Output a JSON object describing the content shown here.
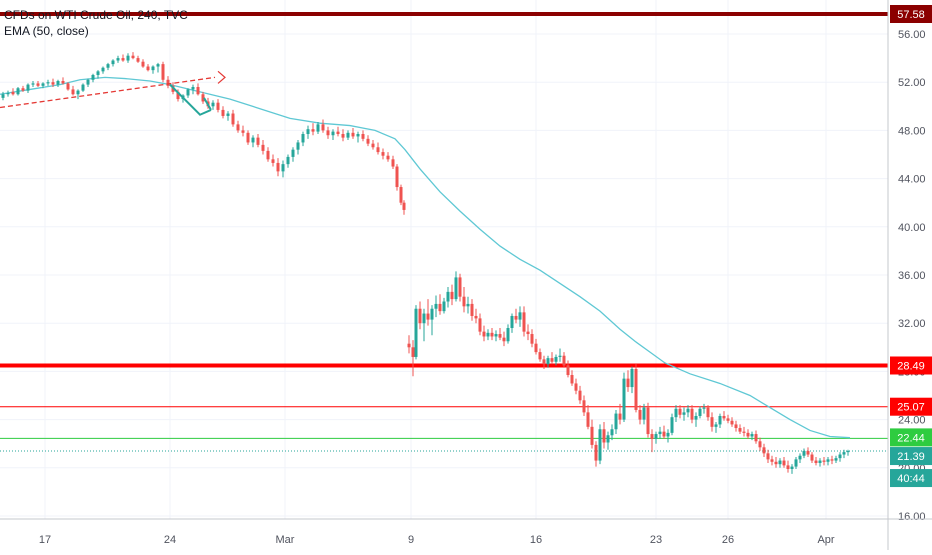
{
  "chart_data": {
    "type": "candlestick",
    "title": "CFDs on WTI Crude Oil, 240, TVC",
    "indicator": "EMA (50, close)",
    "ylim": [
      15.5,
      57.5
    ],
    "y_ticks": [
      "56.00",
      "52.00",
      "48.00",
      "44.00",
      "40.00",
      "36.00",
      "32.00",
      "28.00",
      "24.00",
      "20.00",
      "16.00"
    ],
    "x_ticks": [
      "17",
      "24",
      "Mar",
      "9",
      "16",
      "23",
      "26",
      "Apr"
    ],
    "grid": true,
    "colors": {
      "up": "#26a69a",
      "down": "#ef5350",
      "ema": "#5fc8d4",
      "resistance_dark": "#8b0000",
      "resistance": "#ff0000",
      "support": "#2ecc40",
      "current": "#26a69a"
    },
    "horizontal_lines": [
      {
        "value": 57.58,
        "label": "57.58",
        "color": "#8b0000"
      },
      {
        "value": 28.49,
        "label": "28.49",
        "color": "#ff0000"
      },
      {
        "value": 25.07,
        "label": "25.07",
        "color": "#ff0000"
      },
      {
        "value": 22.44,
        "label": "22.44",
        "color": "#2ecc40"
      },
      {
        "value": 21.39,
        "label": "21.39",
        "color": "#26a69a",
        "dotted": true
      }
    ],
    "countdown": "40:44",
    "ema_path": [
      [
        0,
        51.0
      ],
      [
        30,
        51.4
      ],
      [
        60,
        51.8
      ],
      [
        80,
        52.2
      ],
      [
        105,
        52.4
      ],
      [
        125,
        52.3
      ],
      [
        150,
        52.1
      ],
      [
        170,
        51.8
      ],
      [
        200,
        51.2
      ],
      [
        230,
        50.6
      ],
      [
        260,
        49.8
      ],
      [
        290,
        49.0
      ],
      [
        320,
        48.6
      ],
      [
        350,
        48.4
      ],
      [
        375,
        48.0
      ],
      [
        395,
        47.3
      ],
      [
        405,
        46.4
      ],
      [
        420,
        44.8
      ],
      [
        440,
        42.9
      ],
      [
        460,
        41.3
      ],
      [
        480,
        39.8
      ],
      [
        500,
        38.4
      ],
      [
        520,
        37.3
      ],
      [
        540,
        36.4
      ],
      [
        560,
        35.3
      ],
      [
        580,
        34.2
      ],
      [
        600,
        33.0
      ],
      [
        620,
        31.5
      ],
      [
        635,
        30.5
      ],
      [
        650,
        29.6
      ],
      [
        665,
        28.7
      ],
      [
        690,
        27.8
      ],
      [
        720,
        27.0
      ],
      [
        750,
        26.0
      ],
      [
        770,
        25.0
      ],
      [
        790,
        24.0
      ],
      [
        810,
        23.1
      ],
      [
        830,
        22.6
      ],
      [
        850,
        22.5
      ]
    ],
    "series_candles": [
      [
        3,
        50.7,
        51.2,
        50.5,
        51.0
      ],
      [
        8,
        51.0,
        51.3,
        50.8,
        51.1
      ],
      [
        13,
        51.2,
        51.5,
        50.9,
        51.0
      ],
      [
        18,
        51.0,
        51.6,
        50.9,
        51.5
      ],
      [
        23,
        51.5,
        51.7,
        51.2,
        51.3
      ],
      [
        28,
        51.3,
        51.9,
        51.1,
        51.8
      ],
      [
        33,
        51.8,
        52.1,
        51.6,
        51.9
      ],
      [
        38,
        51.9,
        52.1,
        51.6,
        51.7
      ],
      [
        43,
        51.7,
        52.0,
        51.5,
        51.9
      ],
      [
        48,
        51.9,
        52.2,
        51.7,
        52.0
      ],
      [
        53,
        52.0,
        52.3,
        51.6,
        51.8
      ],
      [
        58,
        51.8,
        52.2,
        51.6,
        52.1
      ],
      [
        63,
        52.1,
        52.4,
        51.8,
        51.9
      ],
      [
        68,
        51.9,
        52.0,
        51.3,
        51.4
      ],
      [
        73,
        51.4,
        51.7,
        50.9,
        51.0
      ],
      [
        78,
        51.0,
        51.4,
        50.6,
        51.3
      ],
      [
        83,
        51.3,
        51.9,
        51.2,
        51.8
      ],
      [
        88,
        51.8,
        52.3,
        51.6,
        52.2
      ],
      [
        93,
        52.2,
        52.7,
        52.0,
        52.6
      ],
      [
        98,
        52.6,
        53.0,
        52.3,
        52.9
      ],
      [
        103,
        52.9,
        53.3,
        52.7,
        53.2
      ],
      [
        108,
        53.2,
        53.6,
        53.0,
        53.5
      ],
      [
        113,
        53.5,
        53.9,
        53.3,
        53.8
      ],
      [
        118,
        53.8,
        54.2,
        53.6,
        54.0
      ],
      [
        123,
        54.0,
        54.3,
        53.7,
        53.8
      ],
      [
        128,
        53.8,
        54.4,
        53.6,
        54.2
      ],
      [
        133,
        54.2,
        54.5,
        53.9,
        54.0
      ],
      [
        138,
        54.0,
        54.2,
        53.6,
        53.7
      ],
      [
        143,
        53.7,
        53.9,
        53.2,
        53.3
      ],
      [
        148,
        53.3,
        53.5,
        52.9,
        53.0
      ],
      [
        153,
        53.0,
        53.4,
        52.7,
        53.3
      ],
      [
        158,
        53.3,
        53.6,
        52.8,
        53.5
      ],
      [
        163,
        53.5,
        53.7,
        52.0,
        52.2
      ],
      [
        168,
        52.2,
        52.5,
        51.5,
        51.7
      ],
      [
        173,
        51.7,
        52.0,
        51.0,
        51.2
      ],
      [
        178,
        51.2,
        51.4,
        50.4,
        50.6
      ],
      [
        183,
        50.6,
        51.0,
        50.3,
        50.9
      ],
      [
        188,
        50.9,
        51.5,
        50.7,
        51.4
      ],
      [
        193,
        51.4,
        51.8,
        51.0,
        51.6
      ],
      [
        198,
        51.6,
        51.9,
        50.9,
        51.0
      ],
      [
        203,
        51.0,
        51.2,
        50.2,
        50.4
      ],
      [
        208,
        50.4,
        50.7,
        49.8,
        50.0
      ],
      [
        213,
        50.0,
        50.5,
        49.7,
        50.3
      ],
      [
        218,
        50.3,
        50.6,
        49.5,
        49.7
      ],
      [
        223,
        49.7,
        50.0,
        49.0,
        49.2
      ],
      [
        228,
        49.2,
        49.6,
        48.8,
        49.4
      ],
      [
        233,
        49.4,
        49.7,
        48.3,
        48.5
      ],
      [
        238,
        48.5,
        48.8,
        47.8,
        48.0
      ],
      [
        243,
        48.0,
        48.4,
        47.5,
        47.8
      ],
      [
        248,
        47.8,
        48.0,
        46.8,
        47.0
      ],
      [
        253,
        47.0,
        47.6,
        46.6,
        47.4
      ],
      [
        258,
        47.4,
        47.7,
        46.6,
        46.8
      ],
      [
        263,
        46.8,
        47.2,
        46.0,
        46.3
      ],
      [
        268,
        46.3,
        46.6,
        45.4,
        45.6
      ],
      [
        273,
        45.6,
        46.0,
        45.0,
        45.3
      ],
      [
        278,
        45.3,
        45.7,
        44.2,
        44.6
      ],
      [
        283,
        44.6,
        45.5,
        44.1,
        45.2
      ],
      [
        288,
        45.2,
        46.0,
        44.9,
        45.8
      ],
      [
        293,
        45.8,
        46.6,
        45.4,
        46.4
      ],
      [
        298,
        46.4,
        47.2,
        46.0,
        47.0
      ],
      [
        303,
        47.0,
        47.9,
        46.7,
        47.7
      ],
      [
        308,
        47.7,
        48.4,
        47.3,
        48.1
      ],
      [
        313,
        48.1,
        48.6,
        47.6,
        47.9
      ],
      [
        318,
        47.9,
        48.7,
        47.7,
        48.5
      ],
      [
        323,
        48.5,
        48.9,
        47.8,
        48.0
      ],
      [
        328,
        48.0,
        48.3,
        47.3,
        47.6
      ],
      [
        333,
        47.6,
        48.1,
        47.2,
        47.9
      ],
      [
        338,
        47.9,
        48.3,
        47.5,
        47.7
      ],
      [
        343,
        47.7,
        48.1,
        47.1,
        47.4
      ],
      [
        348,
        47.4,
        48.0,
        47.2,
        47.8
      ],
      [
        353,
        47.8,
        48.2,
        47.3,
        47.5
      ],
      [
        358,
        47.5,
        47.9,
        47.0,
        47.7
      ],
      [
        363,
        47.7,
        48.0,
        47.1,
        47.3
      ],
      [
        368,
        47.3,
        47.6,
        46.7,
        46.9
      ],
      [
        373,
        46.9,
        47.2,
        46.4,
        46.6
      ],
      [
        378,
        46.6,
        47.0,
        46.0,
        46.2
      ],
      [
        383,
        46.2,
        46.5,
        45.6,
        45.9
      ],
      [
        388,
        45.9,
        46.2,
        45.4,
        45.6
      ],
      [
        393,
        45.6,
        45.9,
        44.8,
        45.0
      ],
      [
        397,
        45.0,
        45.2,
        43.0,
        43.3
      ],
      [
        401,
        43.3,
        43.5,
        41.8,
        42.0
      ],
      [
        404,
        42.0,
        42.2,
        41.0,
        41.4
      ],
      [
        409,
        30.3,
        31.0,
        29.5,
        30.0
      ],
      [
        413,
        30.0,
        30.6,
        27.6,
        29.2
      ],
      [
        416,
        29.2,
        33.5,
        29.0,
        33.2
      ],
      [
        420,
        33.2,
        33.8,
        31.5,
        32.0
      ],
      [
        424,
        32.0,
        33.2,
        30.5,
        32.8
      ],
      [
        428,
        32.8,
        34.0,
        31.8,
        32.3
      ],
      [
        432,
        32.3,
        33.5,
        31.0,
        33.2
      ],
      [
        436,
        33.2,
        34.3,
        32.5,
        33.6
      ],
      [
        440,
        33.6,
        34.4,
        32.7,
        33.0
      ],
      [
        444,
        33.0,
        34.1,
        32.8,
        33.8
      ],
      [
        448,
        33.8,
        35.0,
        33.3,
        34.6
      ],
      [
        452,
        34.6,
        35.2,
        33.5,
        34.0
      ],
      [
        456,
        34.0,
        36.3,
        33.8,
        35.8
      ],
      [
        460,
        35.8,
        36.1,
        33.8,
        34.2
      ],
      [
        464,
        34.2,
        35.0,
        32.9,
        33.4
      ],
      [
        468,
        33.4,
        34.2,
        32.8,
        33.6
      ],
      [
        472,
        33.6,
        34.0,
        32.2,
        32.6
      ],
      [
        476,
        32.6,
        33.2,
        32.0,
        32.4
      ],
      [
        480,
        32.4,
        32.8,
        31.0,
        31.3
      ],
      [
        484,
        31.3,
        31.8,
        30.5,
        30.9
      ],
      [
        488,
        30.9,
        31.5,
        30.6,
        31.2
      ],
      [
        492,
        31.2,
        31.6,
        30.6,
        30.9
      ],
      [
        496,
        30.9,
        31.4,
        30.5,
        31.1
      ],
      [
        500,
        31.1,
        31.6,
        30.6,
        30.8
      ],
      [
        504,
        30.8,
        31.3,
        30.1,
        30.5
      ],
      [
        508,
        30.5,
        31.9,
        30.3,
        31.6
      ],
      [
        512,
        31.6,
        32.8,
        31.2,
        32.6
      ],
      [
        516,
        32.6,
        33.2,
        32.0,
        32.3
      ],
      [
        520,
        32.3,
        33.4,
        31.7,
        32.9
      ],
      [
        524,
        32.9,
        33.4,
        30.9,
        31.3
      ],
      [
        528,
        31.3,
        31.9,
        30.6,
        31.1
      ],
      [
        532,
        31.1,
        31.5,
        30.0,
        30.3
      ],
      [
        536,
        30.3,
        30.7,
        29.4,
        29.6
      ],
      [
        540,
        29.6,
        29.9,
        28.8,
        29.0
      ],
      [
        544,
        29.0,
        29.3,
        28.2,
        28.6
      ],
      [
        548,
        28.6,
        29.3,
        28.3,
        29.1
      ],
      [
        552,
        29.1,
        29.6,
        28.6,
        28.8
      ],
      [
        556,
        28.8,
        29.4,
        28.5,
        29.2
      ],
      [
        560,
        29.2,
        29.9,
        28.8,
        29.3
      ],
      [
        564,
        29.3,
        29.6,
        28.3,
        28.5
      ],
      [
        568,
        28.5,
        28.9,
        27.5,
        27.7
      ],
      [
        572,
        27.7,
        28.1,
        26.8,
        27.0
      ],
      [
        576,
        27.0,
        27.4,
        26.1,
        26.4
      ],
      [
        580,
        26.4,
        26.8,
        25.3,
        25.6
      ],
      [
        584,
        25.6,
        26.0,
        24.3,
        24.6
      ],
      [
        588,
        24.6,
        25.2,
        23.2,
        23.4
      ],
      [
        592,
        23.4,
        24.0,
        21.6,
        21.9
      ],
      [
        596,
        21.9,
        22.2,
        20.1,
        20.6
      ],
      [
        600,
        20.6,
        23.6,
        20.3,
        23.2
      ],
      [
        604,
        23.2,
        23.8,
        21.6,
        22.1
      ],
      [
        608,
        22.1,
        23.0,
        21.5,
        22.7
      ],
      [
        612,
        22.7,
        23.6,
        22.3,
        23.2
      ],
      [
        616,
        23.2,
        24.8,
        22.8,
        24.5
      ],
      [
        620,
        24.5,
        25.3,
        23.6,
        24.0
      ],
      [
        624,
        24.0,
        27.9,
        23.8,
        27.4
      ],
      [
        628,
        27.4,
        28.1,
        26.3,
        26.7
      ],
      [
        632,
        26.7,
        28.4,
        26.2,
        28.2
      ],
      [
        636,
        28.2,
        28.6,
        24.6,
        24.8
      ],
      [
        640,
        24.8,
        25.2,
        23.6,
        24.0
      ],
      [
        644,
        24.0,
        25.3,
        23.6,
        25.0
      ],
      [
        648,
        25.0,
        25.4,
        22.5,
        22.8
      ],
      [
        652,
        22.8,
        23.2,
        21.3,
        22.4
      ],
      [
        656,
        22.4,
        23.0,
        22.0,
        22.8
      ],
      [
        660,
        22.8,
        23.4,
        22.4,
        23.0
      ],
      [
        664,
        23.0,
        23.5,
        22.4,
        22.6
      ],
      [
        668,
        22.6,
        23.2,
        22.1,
        22.9
      ],
      [
        672,
        22.9,
        24.5,
        22.7,
        24.2
      ],
      [
        676,
        24.2,
        25.2,
        23.8,
        24.9
      ],
      [
        680,
        24.9,
        25.2,
        24.1,
        24.4
      ],
      [
        684,
        24.4,
        25.0,
        23.9,
        24.6
      ],
      [
        688,
        24.6,
        25.2,
        24.2,
        24.9
      ],
      [
        692,
        24.9,
        25.2,
        23.7,
        24.0
      ],
      [
        696,
        24.0,
        24.6,
        23.4,
        24.3
      ],
      [
        700,
        24.3,
        25.1,
        24.1,
        24.9
      ],
      [
        704,
        24.9,
        25.3,
        24.5,
        25.0
      ],
      [
        708,
        25.0,
        25.2,
        23.9,
        24.2
      ],
      [
        712,
        24.2,
        24.6,
        23.0,
        23.4
      ],
      [
        716,
        23.4,
        23.8,
        22.9,
        23.6
      ],
      [
        720,
        23.6,
        24.5,
        23.3,
        24.3
      ],
      [
        724,
        24.3,
        24.7,
        23.9,
        24.1
      ],
      [
        728,
        24.1,
        24.4,
        23.7,
        23.9
      ],
      [
        732,
        23.9,
        24.2,
        23.4,
        23.6
      ],
      [
        736,
        23.6,
        23.9,
        23.0,
        23.3
      ],
      [
        740,
        23.3,
        23.6,
        22.8,
        23.0
      ],
      [
        744,
        23.0,
        23.4,
        22.6,
        22.9
      ],
      [
        748,
        22.9,
        23.2,
        22.4,
        22.6
      ],
      [
        752,
        22.6,
        23.0,
        22.3,
        22.8
      ],
      [
        756,
        22.8,
        23.1,
        22.0,
        22.2
      ],
      [
        760,
        22.2,
        22.5,
        21.4,
        21.7
      ],
      [
        764,
        21.7,
        22.0,
        20.9,
        21.2
      ],
      [
        768,
        21.2,
        21.5,
        20.4,
        20.7
      ],
      [
        772,
        20.7,
        21.0,
        20.2,
        20.5
      ],
      [
        776,
        20.5,
        20.9,
        20.0,
        20.3
      ],
      [
        780,
        20.3,
        20.8,
        20.0,
        20.6
      ],
      [
        784,
        20.6,
        20.9,
        20.0,
        20.2
      ],
      [
        788,
        20.2,
        20.6,
        19.6,
        19.9
      ],
      [
        792,
        19.9,
        20.3,
        19.5,
        20.1
      ],
      [
        796,
        20.1,
        20.9,
        19.9,
        20.7
      ],
      [
        800,
        20.7,
        21.2,
        20.4,
        21.0
      ],
      [
        804,
        21.0,
        21.6,
        20.8,
        21.4
      ],
      [
        808,
        21.4,
        21.7,
        20.9,
        21.1
      ],
      [
        812,
        21.1,
        21.3,
        20.4,
        20.6
      ],
      [
        816,
        20.6,
        20.9,
        20.2,
        20.4
      ],
      [
        820,
        20.4,
        20.8,
        20.1,
        20.6
      ],
      [
        824,
        20.6,
        20.9,
        20.2,
        20.5
      ],
      [
        828,
        20.5,
        20.9,
        20.2,
        20.7
      ],
      [
        832,
        20.7,
        21.0,
        20.3,
        20.6
      ],
      [
        836,
        20.6,
        21.0,
        20.4,
        20.8
      ],
      [
        840,
        20.8,
        21.3,
        20.5,
        21.1
      ],
      [
        844,
        21.1,
        21.5,
        20.8,
        21.3
      ],
      [
        848,
        21.3,
        21.5,
        21.0,
        21.39
      ]
    ]
  }
}
